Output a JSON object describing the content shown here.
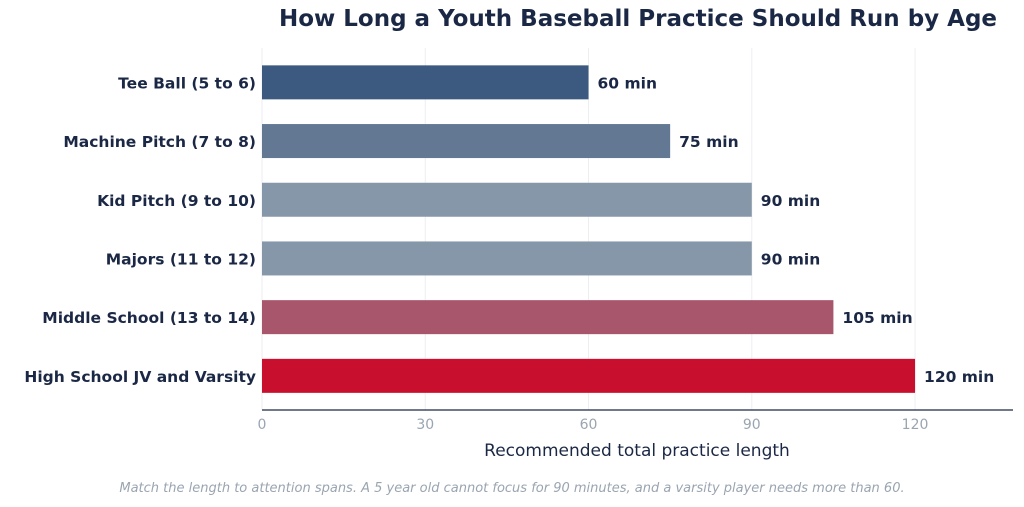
{
  "chart_data": {
    "type": "bar",
    "orientation": "horizontal",
    "title": "How Long a Youth Baseball Practice Should Run by Age",
    "xlabel": "Recommended total practice length",
    "ylabel": "",
    "categories": [
      "Tee Ball (5 to 6)",
      "Machine Pitch (7 to 8)",
      "Kid Pitch (9 to 10)",
      "Majors (11 to 12)",
      "Middle School (13 to 14)",
      "High School JV and Varsity"
    ],
    "values": [
      60,
      75,
      90,
      90,
      105,
      120
    ],
    "value_labels": [
      "60 min",
      "75 min",
      "90 min",
      "90 min",
      "105 min",
      "120 min"
    ],
    "colors": [
      "#3c5a80",
      "#627893",
      "#8797aa",
      "#8797aa",
      "#a8566b",
      "#c8102e"
    ],
    "xlim": [
      0,
      138
    ],
    "xticks": [
      0,
      30,
      60,
      90,
      120
    ],
    "grid": "vertical",
    "footnote": "Match the length to attention spans. A 5 year old cannot focus for 90 minutes, and a varsity player needs more than 60."
  }
}
